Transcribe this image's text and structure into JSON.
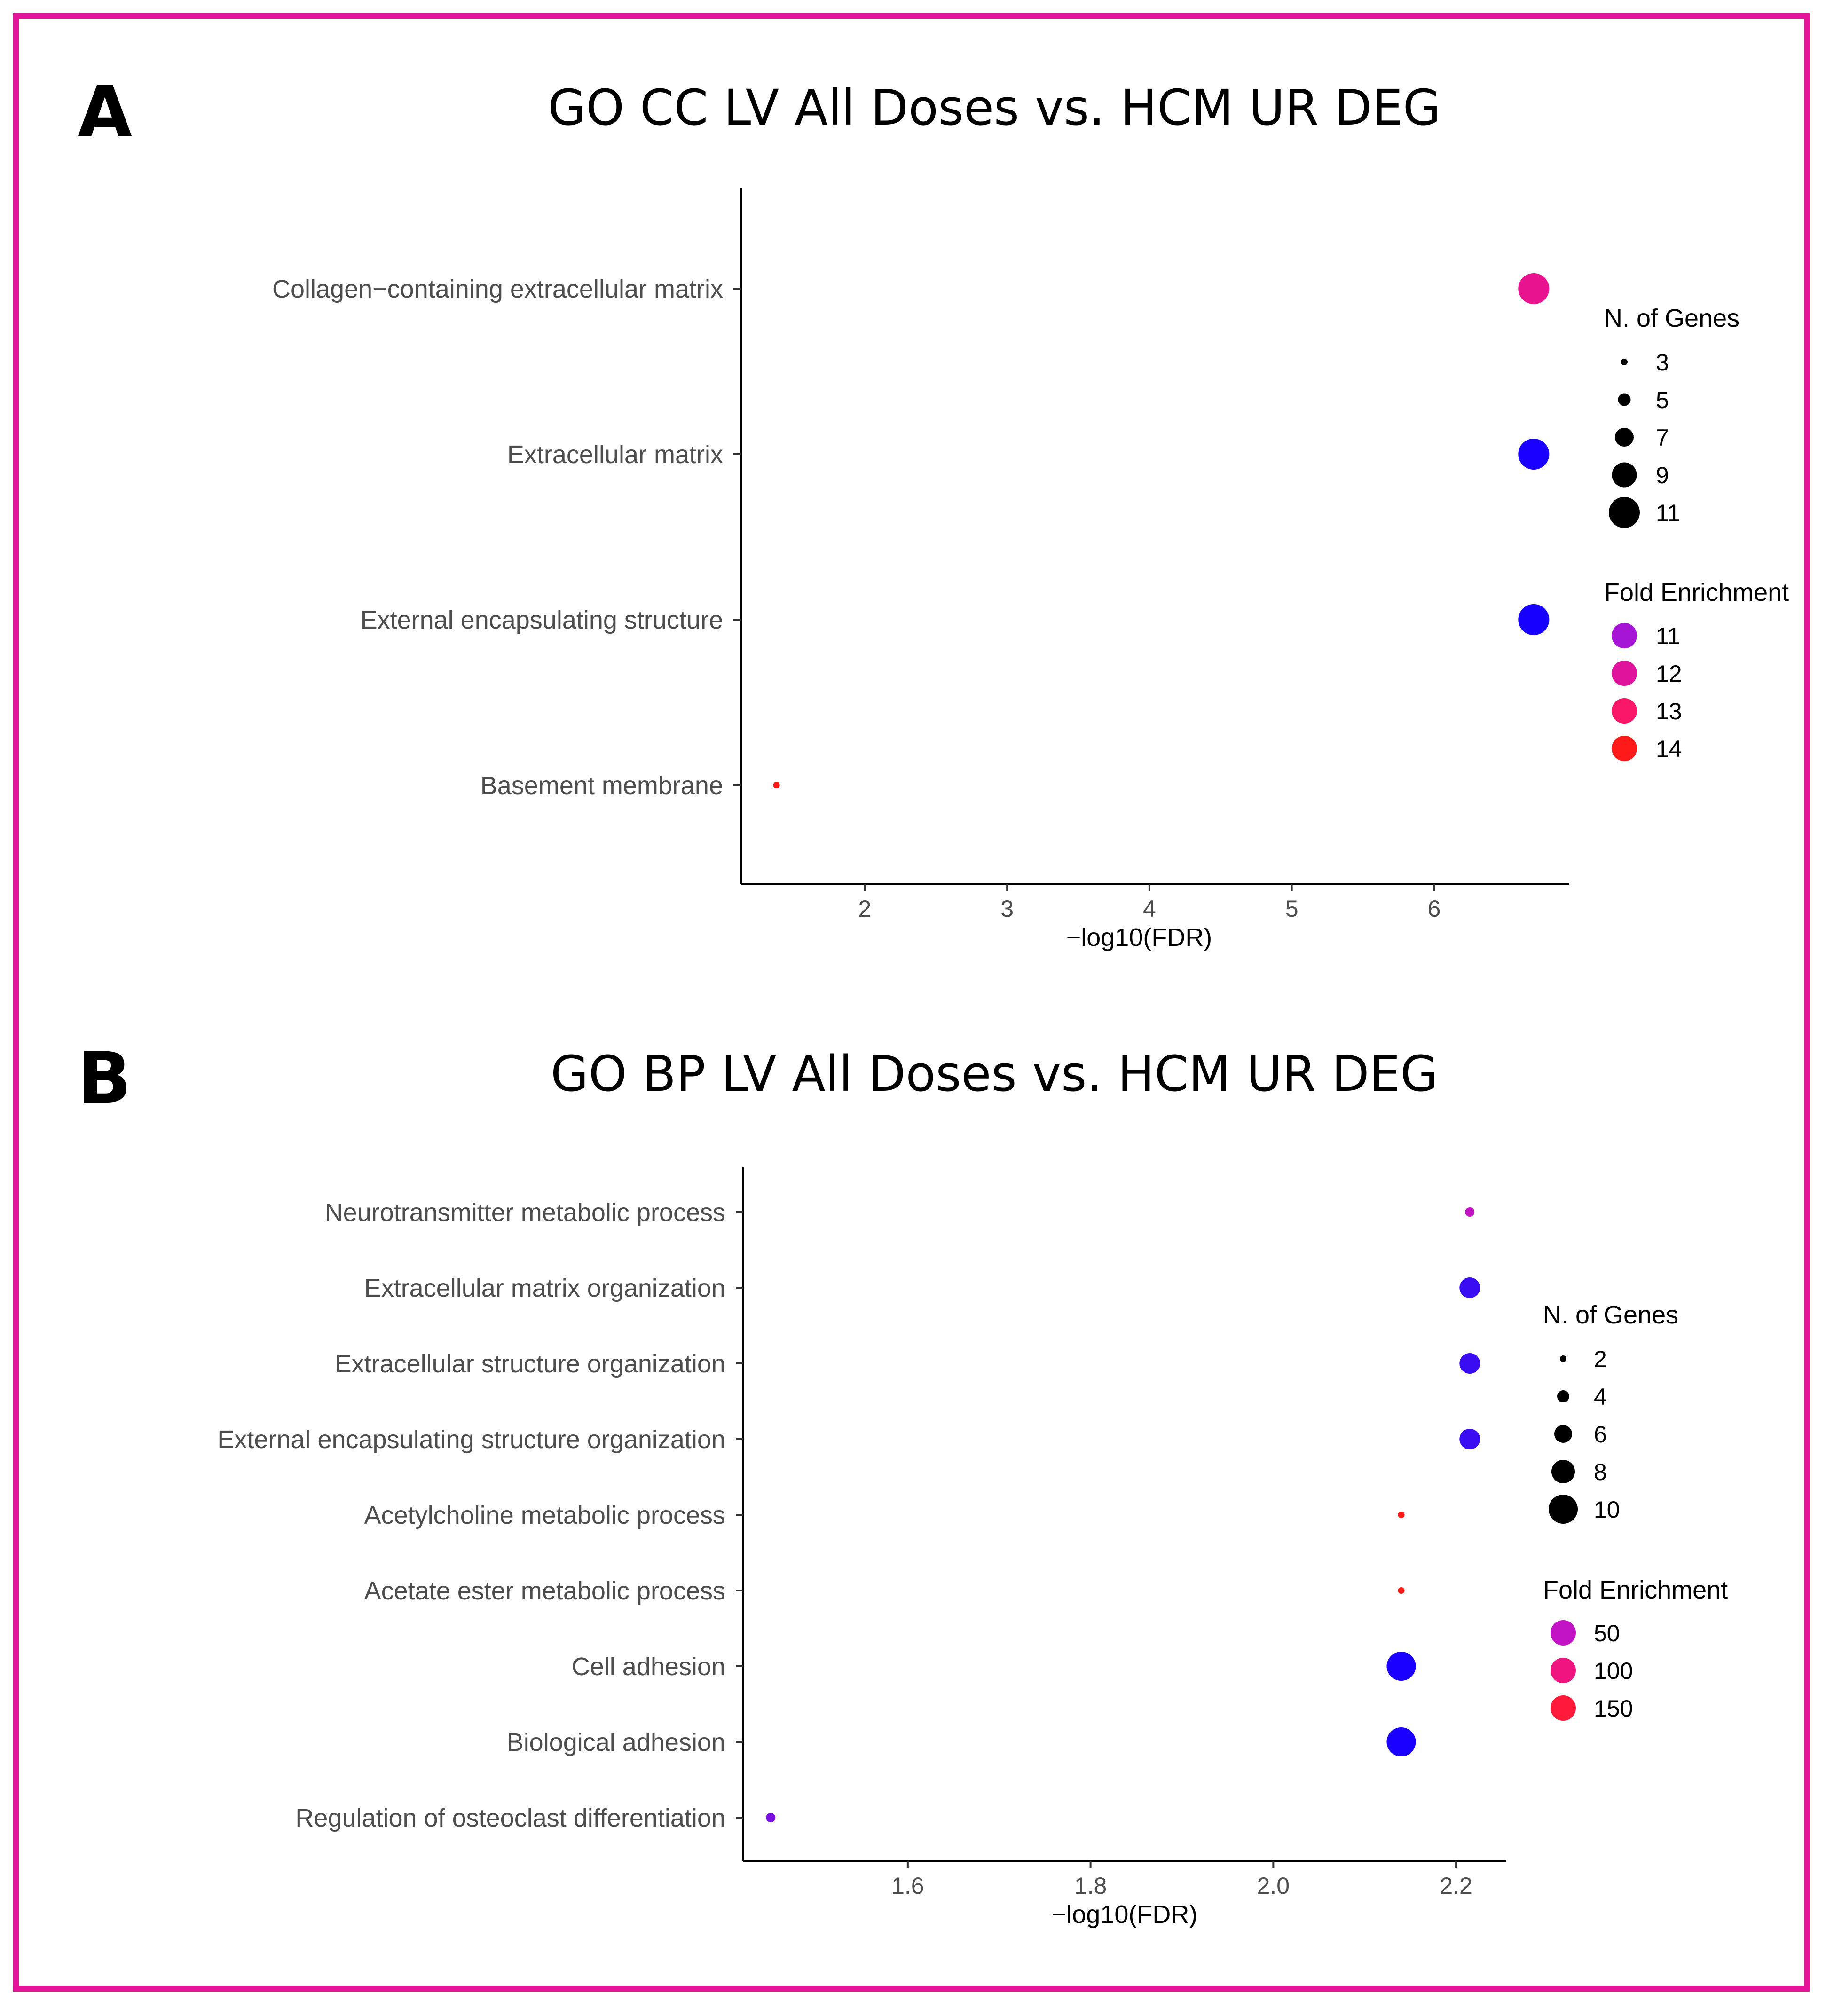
{
  "chart_data": [
    {
      "panel": "A",
      "type": "scatter",
      "title": "GO CC LV All Doses vs. HCM UR DEG",
      "xlabel": "−log10(FDR)",
      "ylabel": "",
      "xlim": [
        1.13,
        6.95
      ],
      "xticks": [
        2,
        3,
        4,
        5,
        6
      ],
      "xtick_labels": [
        "2",
        "3",
        "4",
        "5",
        "6"
      ],
      "categories": [
        "Collagen−containing extracellular matrix",
        "Extracellular matrix",
        "External encapsulating structure",
        "Basement membrane"
      ],
      "points": [
        {
          "category": "Collagen−containing extracellular matrix",
          "x": 6.7,
          "genes": 11,
          "fold": 12.0,
          "color": "#e8148f"
        },
        {
          "category": "Extracellular matrix",
          "x": 6.7,
          "genes": 11,
          "fold": 8.5,
          "color": "#1a00ff"
        },
        {
          "category": "External encapsulating structure",
          "x": 6.7,
          "genes": 11,
          "fold": 8.5,
          "color": "#1800ff"
        },
        {
          "category": "Basement membrane",
          "x": 1.38,
          "genes": 3,
          "fold": 14.5,
          "color": "#ff1a1a"
        }
      ],
      "size_legend": {
        "title": "N. of Genes",
        "values": [
          3,
          5,
          7,
          9,
          11
        ],
        "labels": [
          "3",
          "5",
          "7",
          "9",
          "11"
        ]
      },
      "color_legend": {
        "title": "Fold Enrichment",
        "labels": [
          "11",
          "12",
          "13",
          "14"
        ],
        "colors": [
          "#a614d6",
          "#e0149c",
          "#fa1668",
          "#ff1a1a"
        ]
      }
    },
    {
      "panel": "B",
      "type": "scatter",
      "title": "GO BP LV All Doses vs. HCM UR DEG",
      "xlabel": "−log10(FDR)",
      "ylabel": "",
      "xlim": [
        1.42,
        2.255
      ],
      "xticks": [
        1.6,
        1.8,
        2.0,
        2.2
      ],
      "xtick_labels": [
        "1.6",
        "1.8",
        "2.0",
        "2.2"
      ],
      "categories": [
        "Neurotransmitter metabolic process",
        "Extracellular matrix organization",
        "Extracellular structure organization",
        "External encapsulating structure organization",
        "Acetylcholine metabolic process",
        "Acetate ester metabolic process",
        "Cell adhesion",
        "Biological adhesion",
        "Regulation of osteoclast differentiation"
      ],
      "points": [
        {
          "category": "Neurotransmitter metabolic process",
          "x": 2.215,
          "genes": 3,
          "fold": 50,
          "color": "#c214c4"
        },
        {
          "category": "Extracellular matrix organization",
          "x": 2.215,
          "genes": 7,
          "fold": 18,
          "color": "#3a0cf2"
        },
        {
          "category": "Extracellular structure organization",
          "x": 2.215,
          "genes": 7,
          "fold": 18,
          "color": "#3a0cf2"
        },
        {
          "category": "External encapsulating structure organization",
          "x": 2.215,
          "genes": 7,
          "fold": 18,
          "color": "#3a0cf2"
        },
        {
          "category": "Acetylcholine metabolic process",
          "x": 2.14,
          "genes": 2,
          "fold": 160,
          "color": "#ff1a1a"
        },
        {
          "category": "Acetate ester metabolic process",
          "x": 2.14,
          "genes": 2,
          "fold": 160,
          "color": "#ff1a1a"
        },
        {
          "category": "Cell adhesion",
          "x": 2.14,
          "genes": 10,
          "fold": 6,
          "color": "#1a00ff"
        },
        {
          "category": "Biological adhesion",
          "x": 2.14,
          "genes": 10,
          "fold": 6,
          "color": "#1a00ff"
        },
        {
          "category": "Regulation of osteoclast differentiation",
          "x": 1.45,
          "genes": 3,
          "fold": 30,
          "color": "#7a10e0"
        }
      ],
      "size_legend": {
        "title": "N. of Genes",
        "values": [
          2,
          4,
          6,
          8,
          10
        ],
        "labels": [
          "2",
          "4",
          "6",
          "8",
          "10"
        ]
      },
      "color_legend": {
        "title": "Fold Enrichment",
        "labels": [
          "50",
          "100",
          "150"
        ],
        "colors": [
          "#c214c4",
          "#f01480",
          "#ff1a3a"
        ]
      }
    }
  ]
}
